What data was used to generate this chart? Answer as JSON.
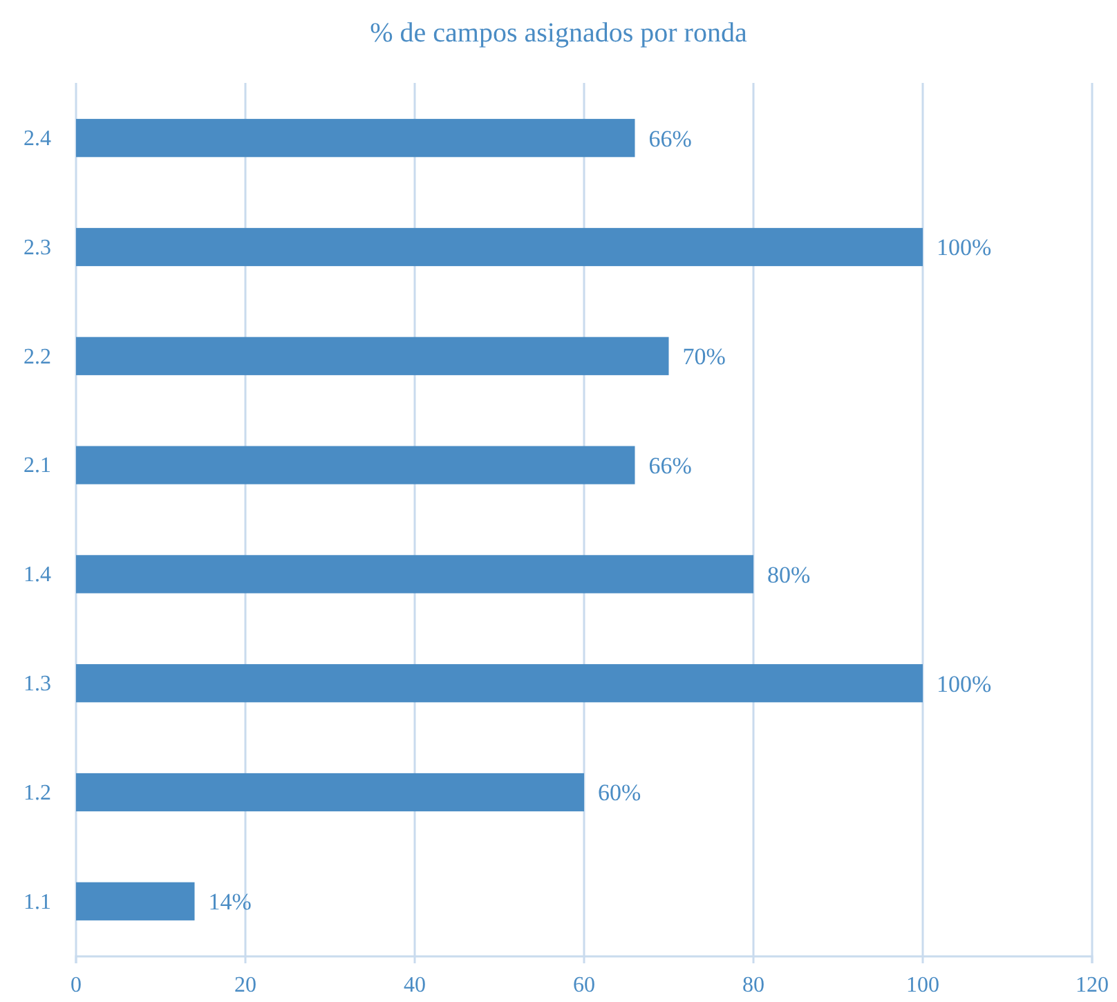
{
  "chart_data": {
    "type": "bar",
    "orientation": "horizontal",
    "title": "% de campos asignados  por ronda",
    "categories": [
      "2.4",
      "2.3",
      "2.2",
      "2.1",
      "1.4",
      "1.3",
      "1.2",
      "1.1"
    ],
    "values": [
      66,
      100,
      70,
      66,
      80,
      100,
      60,
      14
    ],
    "value_labels": [
      "66%",
      "100%",
      "70%",
      "66%",
      "80%",
      "100%",
      "60%",
      "14%"
    ],
    "color": "#4a8cc4",
    "xlim": [
      0,
      120
    ],
    "xticks": [
      0,
      20,
      40,
      60,
      80,
      100,
      120
    ],
    "grid": "x"
  }
}
